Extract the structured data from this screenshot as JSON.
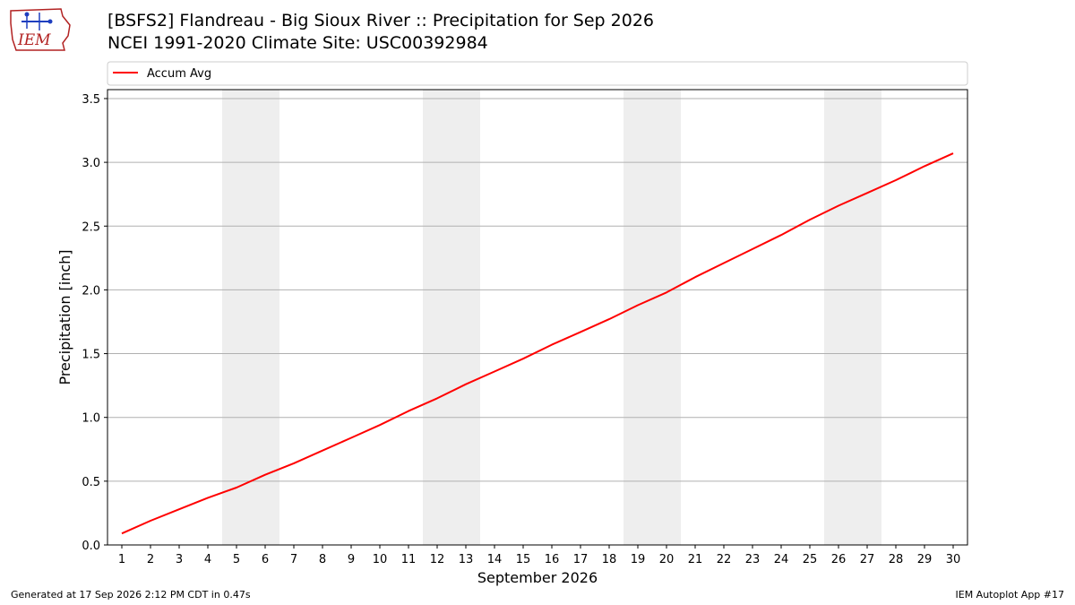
{
  "header": {
    "logo_text": "IEM",
    "title_line1": "[BSFS2] Flandreau - Big Sioux River :: Precipitation for Sep 2026",
    "title_line2": "NCEI 1991-2020 Climate Site: USC00392984"
  },
  "footer": {
    "left": "Generated at 17 Sep 2026 2:12 PM CDT in 0.47s",
    "right": "IEM Autoplot App #17"
  },
  "chart_data": {
    "type": "line",
    "title": "",
    "xlabel": "September 2026",
    "ylabel": "Precipitation [inch]",
    "x": [
      1,
      2,
      3,
      4,
      5,
      6,
      7,
      8,
      9,
      10,
      11,
      12,
      13,
      14,
      15,
      16,
      17,
      18,
      19,
      20,
      21,
      22,
      23,
      24,
      25,
      26,
      27,
      28,
      29,
      30
    ],
    "xlim": [
      0.5,
      30.5
    ],
    "ylim": [
      0,
      3.57
    ],
    "yticks": [
      0.0,
      0.5,
      1.0,
      1.5,
      2.0,
      2.5,
      3.0,
      3.5
    ],
    "ytick_labels": [
      "0.0",
      "0.5",
      "1.0",
      "1.5",
      "2.0",
      "2.5",
      "3.0",
      "3.5"
    ],
    "grid": "horizontal",
    "legend_position": "top-left",
    "weekend_shading": [
      [
        4.5,
        6.5
      ],
      [
        11.5,
        13.5
      ],
      [
        18.5,
        20.5
      ],
      [
        25.5,
        27.5
      ]
    ],
    "weekend_color": "#eeeeee",
    "series": [
      {
        "name": "Accum Avg",
        "color": "#ff0000",
        "values": [
          0.09,
          0.19,
          0.28,
          0.37,
          0.45,
          0.55,
          0.64,
          0.74,
          0.84,
          0.94,
          1.05,
          1.15,
          1.26,
          1.36,
          1.46,
          1.57,
          1.67,
          1.77,
          1.88,
          1.98,
          2.1,
          2.21,
          2.32,
          2.43,
          2.55,
          2.66,
          2.76,
          2.86,
          2.97,
          3.07
        ]
      }
    ]
  }
}
